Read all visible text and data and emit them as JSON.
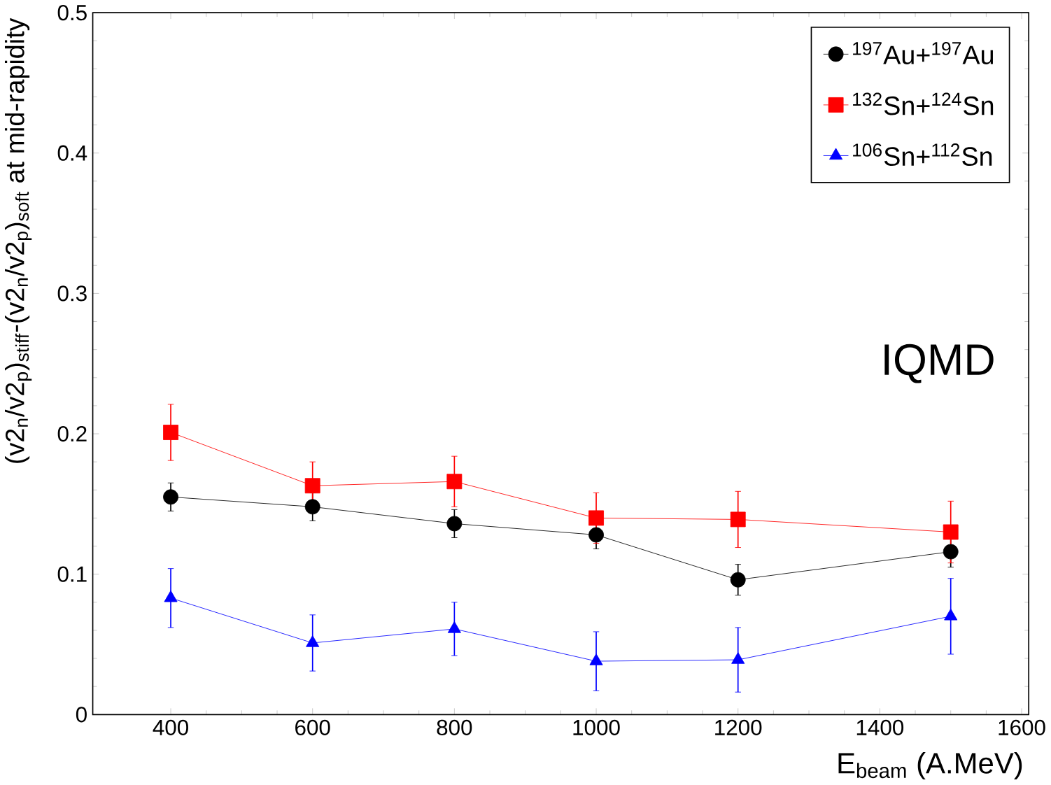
{
  "chart_data": {
    "type": "line",
    "xlabel": "E$_{beam}$ (A.MeV)",
    "ylabel": "(v2$_{n}$/v2$_{p}$)$_{stiff}$-(v2$_{n}$/v2$_{p}$)$_{soft}$ at mid-rapidity",
    "x": [
      400,
      600,
      800,
      1000,
      1200,
      1500
    ],
    "series": [
      {
        "name": "$^{197}$Au+$^{197}$Au",
        "color": "#000000",
        "marker": "circle",
        "values": [
          0.155,
          0.148,
          0.136,
          0.128,
          0.096,
          0.116
        ],
        "errors": [
          0.01,
          0.01,
          0.01,
          0.01,
          0.011,
          0.011
        ]
      },
      {
        "name": "$^{132}$Sn+$^{124}$Sn",
        "color": "#ff0000",
        "marker": "square",
        "values": [
          0.201,
          0.163,
          0.166,
          0.14,
          0.139,
          0.13
        ],
        "errors": [
          0.02,
          0.017,
          0.018,
          0.018,
          0.02,
          0.022
        ]
      },
      {
        "name": "$^{106}$Sn+$^{112}$Sn",
        "color": "#0000ff",
        "marker": "triangle",
        "values": [
          0.083,
          0.051,
          0.061,
          0.038,
          0.039,
          0.07
        ],
        "errors": [
          0.021,
          0.02,
          0.019,
          0.021,
          0.023,
          0.027
        ]
      }
    ],
    "annotations": [
      "IQMD"
    ],
    "xlim": [
      290,
      1610
    ],
    "ylim": [
      0,
      0.5
    ],
    "xticks": [
      400,
      600,
      800,
      1000,
      1200,
      1400,
      1600
    ],
    "yticks": [
      0,
      0.1,
      0.2,
      0.3,
      0.4,
      0.5
    ],
    "grid": false,
    "legend": "top right"
  }
}
